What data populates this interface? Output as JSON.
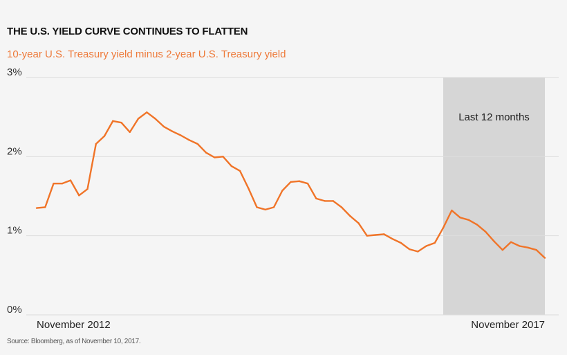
{
  "chart_data": {
    "type": "line",
    "title": "THE U.S. YIELD CURVE CONTINUES TO FLATTEN",
    "subtitle": "10-year U.S. Treasury yield minus 2-year U.S. Treasury yield",
    "xlabel": "",
    "ylabel": "",
    "ylim": [
      0,
      3
    ],
    "y_ticks": [
      "0%",
      "1%",
      "2%",
      "3%"
    ],
    "y_tick_values": [
      0,
      1,
      2,
      3
    ],
    "x_tick_labels": [
      "November 2012",
      "November 2017"
    ],
    "x_tick_values": [
      "2012-11",
      "2017-11"
    ],
    "grid": "horizontal",
    "line_color": "#f07428",
    "shade_color": "#d6d6d6",
    "highlight": {
      "label": "Last 12 months",
      "start": "2016-11",
      "end": "2017-11"
    },
    "x": [
      "2012-11",
      "2012-12",
      "2013-01",
      "2013-02",
      "2013-03",
      "2013-04",
      "2013-05",
      "2013-06",
      "2013-07",
      "2013-08",
      "2013-09",
      "2013-10",
      "2013-11",
      "2013-12",
      "2014-01",
      "2014-02",
      "2014-03",
      "2014-04",
      "2014-05",
      "2014-06",
      "2014-07",
      "2014-08",
      "2014-09",
      "2014-10",
      "2014-11",
      "2014-12",
      "2015-01",
      "2015-02",
      "2015-03",
      "2015-04",
      "2015-05",
      "2015-06",
      "2015-07",
      "2015-08",
      "2015-09",
      "2015-10",
      "2015-11",
      "2015-12",
      "2016-01",
      "2016-02",
      "2016-03",
      "2016-04",
      "2016-05",
      "2016-06",
      "2016-07",
      "2016-08",
      "2016-09",
      "2016-10",
      "2016-11",
      "2016-12",
      "2017-01",
      "2017-02",
      "2017-03",
      "2017-04",
      "2017-05",
      "2017-06",
      "2017-07",
      "2017-08",
      "2017-09",
      "2017-10",
      "2017-11"
    ],
    "values": [
      1.35,
      1.36,
      1.66,
      1.66,
      1.7,
      1.51,
      1.59,
      2.16,
      2.26,
      2.45,
      2.43,
      2.31,
      2.48,
      2.56,
      2.48,
      2.38,
      2.32,
      2.27,
      2.21,
      2.16,
      2.05,
      1.99,
      2.0,
      1.88,
      1.82,
      1.6,
      1.36,
      1.33,
      1.36,
      1.57,
      1.68,
      1.69,
      1.66,
      1.47,
      1.44,
      1.44,
      1.36,
      1.25,
      1.16,
      1.0,
      1.01,
      1.02,
      0.96,
      0.91,
      0.83,
      0.8,
      0.87,
      0.91,
      1.1,
      1.32,
      1.23,
      1.2,
      1.14,
      1.05,
      0.93,
      0.82,
      0.92,
      0.87,
      0.85,
      0.82,
      0.72
    ]
  },
  "source": "Source: Bloomberg, as of November 10, 2017."
}
